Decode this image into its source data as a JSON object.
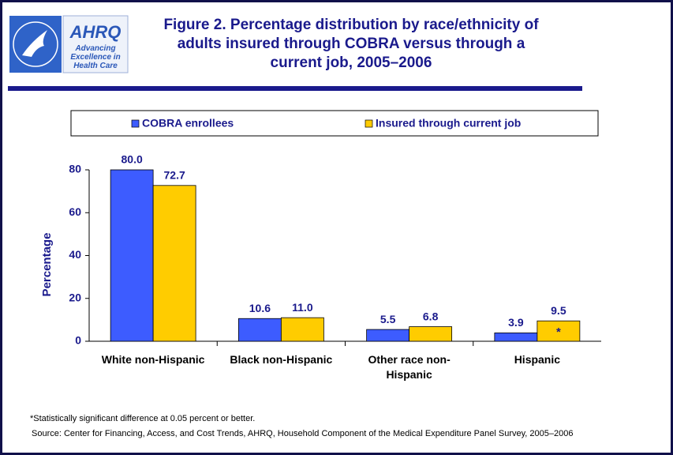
{
  "logo": {
    "acronym": "AHRQ",
    "tagline": "Advancing Excellence in Health Care"
  },
  "chart_data": {
    "type": "bar",
    "title": "Figure 2. Percentage distribution by race/ethnicity of adults insured through COBRA versus through a current job, 2005–2006",
    "y_label": "Percentage",
    "categories": [
      "White non-Hispanic",
      "Black non-Hispanic",
      "Other race non-Hispanic",
      "Hispanic"
    ],
    "series": [
      {
        "name": "COBRA enrollees",
        "color": "#3d5cff",
        "values": [
          80.0,
          10.6,
          5.5,
          3.9
        ],
        "value_labels": [
          "80.0",
          "10.6",
          "5.5",
          "3.9"
        ]
      },
      {
        "name": "Insured through current job",
        "color": "#ffcc00",
        "values": [
          72.7,
          11.0,
          6.8,
          9.5
        ],
        "value_labels": [
          "72.7",
          "11.0",
          "6.8",
          "9.5"
        ]
      }
    ],
    "ylim": [
      0,
      80
    ],
    "yticks": [
      0,
      20,
      40,
      60,
      80
    ],
    "grid": false,
    "legend": "top",
    "significance_marker": "*",
    "footnote": "*Statistically significant difference at 0.05 percent or better.",
    "source": "Source: Center for Financing, Access, and Cost Trends, AHRQ, Household Component of the Medical Expenditure Panel Survey, 2005–2006"
  }
}
